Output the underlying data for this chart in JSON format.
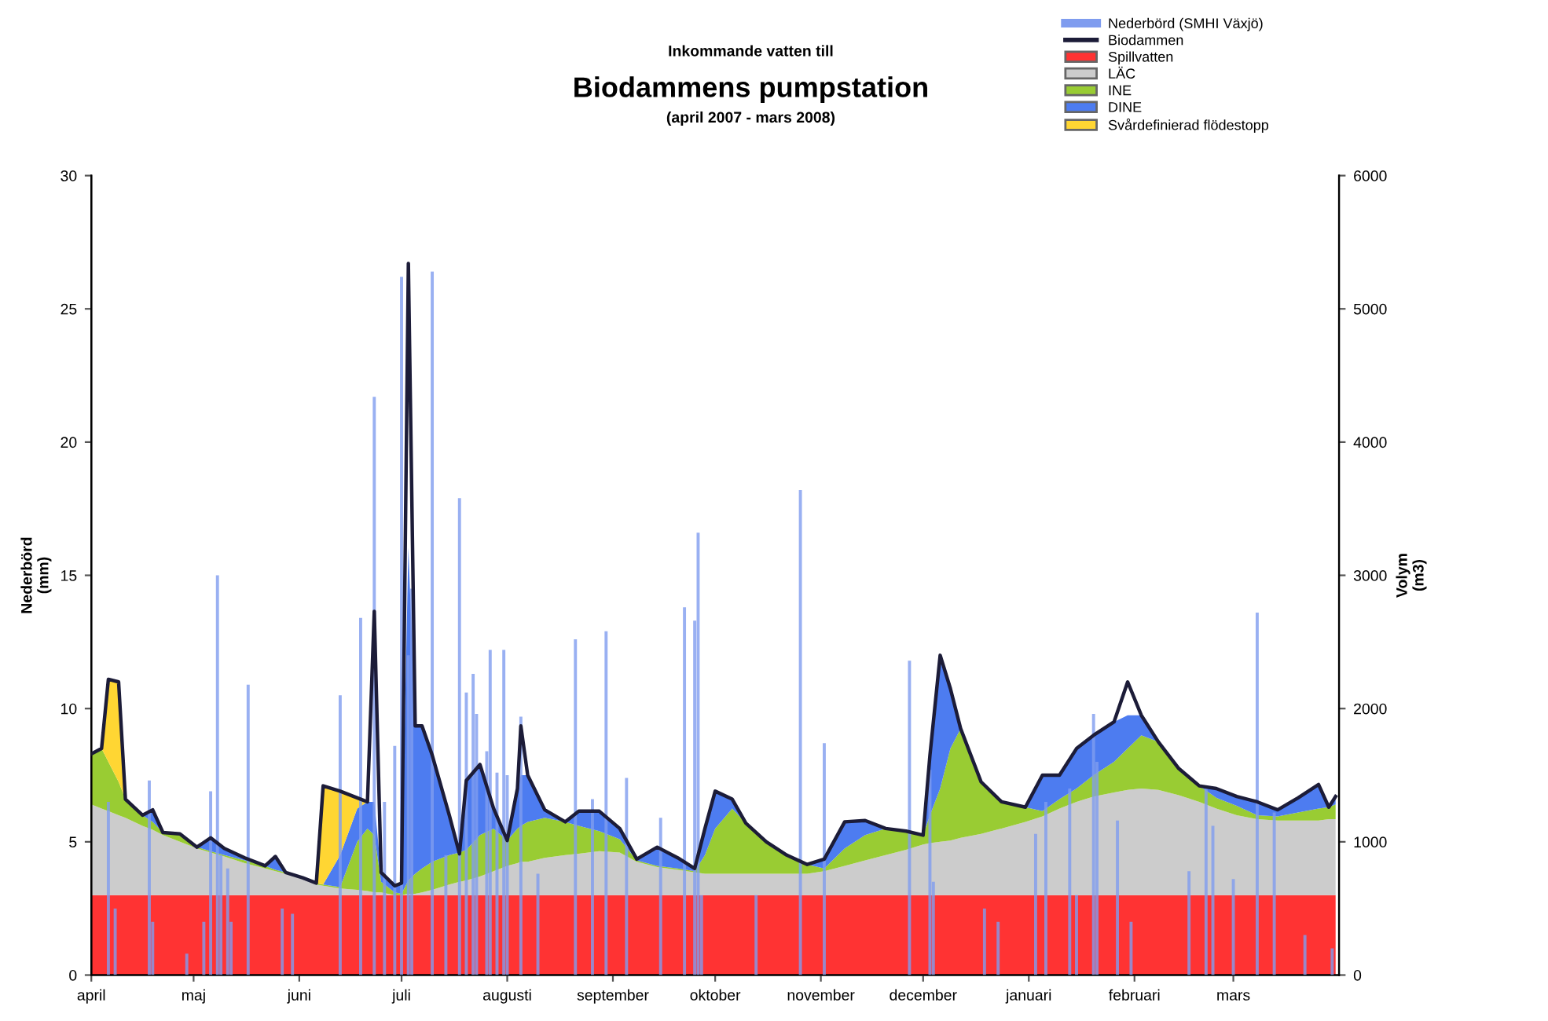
{
  "chart_data": {
    "type": "area",
    "stacked": true,
    "annotations": [
      "Inkommande vatten till"
    ],
    "title": "Biodammens pumpstation",
    "subtitle": "(april 2007 - mars 2008)",
    "ylabel": "Nederbörd\n(mm)",
    "y2label": "Volym\n(m3)",
    "x": [
      "2007-04-01",
      "2007-04-04",
      "2007-04-06",
      "2007-04-09",
      "2007-04-11",
      "2007-04-16",
      "2007-04-19",
      "2007-04-22",
      "2007-04-27",
      "2007-05-02",
      "2007-05-06",
      "2007-05-10",
      "2007-05-16",
      "2007-05-22",
      "2007-05-25",
      "2007-05-28",
      "2007-06-02",
      "2007-06-06",
      "2007-06-08",
      "2007-06-13",
      "2007-06-18",
      "2007-06-21",
      "2007-06-23",
      "2007-06-25",
      "2007-06-29",
      "2007-07-01",
      "2007-07-03",
      "2007-07-05",
      "2007-07-07",
      "2007-07-10",
      "2007-07-15",
      "2007-07-18",
      "2007-07-20",
      "2007-07-24",
      "2007-07-28",
      "2007-08-01",
      "2007-08-04",
      "2007-08-05",
      "2007-08-07",
      "2007-08-12",
      "2007-08-18",
      "2007-08-22",
      "2007-08-28",
      "2007-09-03",
      "2007-09-08",
      "2007-09-14",
      "2007-09-20",
      "2007-09-25",
      "2007-09-28",
      "2007-10-01",
      "2007-10-06",
      "2007-10-10",
      "2007-10-16",
      "2007-10-22",
      "2007-10-28",
      "2007-11-02",
      "2007-11-08",
      "2007-11-14",
      "2007-11-20",
      "2007-11-26",
      "2007-12-01",
      "2007-12-03",
      "2007-12-06",
      "2007-12-09",
      "2007-12-12",
      "2007-12-18",
      "2007-12-24",
      "2007-12-31",
      "2008-01-05",
      "2008-01-10",
      "2008-01-15",
      "2008-01-20",
      "2008-01-26",
      "2008-01-30",
      "2008-02-03",
      "2008-02-08",
      "2008-02-14",
      "2008-02-20",
      "2008-02-25",
      "2008-03-02",
      "2008-03-08",
      "2008-03-14",
      "2008-03-20",
      "2008-03-26",
      "2008-03-29",
      "2008-03-31"
    ],
    "series": [
      {
        "name": "Spillvatten",
        "axis": "y2",
        "color": "#ff3333",
        "values": [
          600,
          600,
          600,
          600,
          600,
          600,
          600,
          600,
          600,
          600,
          600,
          600,
          600,
          600,
          600,
          600,
          600,
          600,
          600,
          600,
          600,
          600,
          600,
          600,
          600,
          600,
          600,
          600,
          600,
          600,
          600,
          600,
          600,
          600,
          600,
          600,
          600,
          600,
          600,
          600,
          600,
          600,
          600,
          600,
          600,
          600,
          600,
          600,
          600,
          600,
          600,
          600,
          600,
          600,
          600,
          600,
          600,
          600,
          600,
          600,
          600,
          600,
          600,
          600,
          600,
          600,
          600,
          600,
          600,
          600,
          600,
          600,
          600,
          600,
          600,
          600,
          600,
          600,
          600,
          600,
          600,
          600,
          600,
          600,
          600,
          600
        ]
      },
      {
        "name": "LÄC",
        "axis": "y2",
        "color": "#cccccc",
        "values": [
          680,
          650,
          630,
          600,
          580,
          520,
          490,
          450,
          400,
          350,
          320,
          290,
          240,
          200,
          180,
          160,
          120,
          80,
          70,
          50,
          40,
          30,
          20,
          20,
          0,
          0,
          10,
          10,
          20,
          40,
          80,
          100,
          110,
          140,
          180,
          220,
          240,
          250,
          250,
          280,
          300,
          310,
          330,
          320,
          250,
          210,
          190,
          170,
          160,
          160,
          160,
          160,
          160,
          160,
          160,
          180,
          220,
          260,
          300,
          340,
          380,
          390,
          400,
          410,
          430,
          460,
          500,
          550,
          590,
          650,
          700,
          740,
          770,
          790,
          800,
          790,
          750,
          700,
          650,
          600,
          570,
          560,
          560,
          560,
          570,
          570
        ]
      },
      {
        "name": "INE",
        "axis": "y2",
        "color": "#99cc33",
        "values": [
          380,
          450,
          370,
          250,
          140,
          80,
          60,
          20,
          60,
          10,
          10,
          10,
          20,
          20,
          10,
          10,
          10,
          10,
          10,
          10,
          360,
          470,
          430,
          80,
          20,
          10,
          100,
          150,
          180,
          210,
          220,
          220,
          230,
          310,
          320,
          190,
          260,
          270,
          300,
          300,
          250,
          210,
          150,
          100,
          10,
          10,
          10,
          10,
          140,
          340,
          490,
          380,
          240,
          140,
          70,
          20,
          130,
          190,
          200,
          140,
          70,
          210,
          400,
          690,
          820,
          390,
          200,
          110,
          40,
          70,
          100,
          160,
          230,
          310,
          400,
          360,
          200,
          120,
          80,
          70,
          30,
          30,
          60,
          90,
          90,
          110
        ]
      },
      {
        "name": "DINE",
        "axis": "y2",
        "color": "#4d7cf0",
        "values": [
          0,
          0,
          0,
          0,
          0,
          0,
          90,
          0,
          0,
          0,
          100,
          50,
          20,
          0,
          100,
          0,
          0,
          0,
          0,
          240,
          250,
          200,
          250,
          70,
          50,
          80,
          2500,
          1110,
          1070,
          800,
          300,
          0,
          520,
          530,
          150,
          0,
          300,
          380,
          350,
          60,
          0,
          110,
          150,
          80,
          10,
          140,
          80,
          20,
          200,
          280,
          70,
          0,
          0,
          0,
          0,
          70,
          200,
          110,
          0,
          0,
          0,
          450,
          950,
          450,
          0,
          0,
          0,
          0,
          270,
          180,
          300,
          300,
          300,
          250,
          150,
          0,
          0,
          0,
          70,
          70,
          100,
          50,
          110,
          180,
          0,
          60
        ]
      },
      {
        "name": "Svårdefinierad flödestopp",
        "axis": "y2",
        "color": "#ffd633",
        "values": [
          0,
          0,
          620,
          750,
          0,
          0,
          0,
          0,
          0,
          0,
          0,
          0,
          0,
          0,
          0,
          0,
          0,
          0,
          740,
          480,
          80,
          0,
          0,
          0,
          0,
          0,
          0,
          0,
          0,
          0,
          0,
          0,
          0,
          0,
          0,
          0,
          0,
          0,
          0,
          0,
          0,
          0,
          0,
          0,
          0,
          0,
          0,
          0,
          0,
          0,
          0,
          0,
          0,
          0,
          0,
          0,
          0,
          0,
          0,
          0,
          0,
          0,
          0,
          0,
          0,
          0,
          0,
          0,
          0,
          0,
          0,
          0,
          0,
          0,
          0,
          0,
          0,
          0,
          0,
          0,
          0,
          0,
          0,
          0,
          0,
          0
        ]
      },
      {
        "name": "Nederbörd (SMHI Växjö)",
        "type": "bar",
        "axis": "y",
        "color": "#7f9cef",
        "x": [
          "2007-04-06",
          "2007-04-08",
          "2007-04-18",
          "2007-04-19",
          "2007-04-29",
          "2007-05-04",
          "2007-05-06",
          "2007-05-08",
          "2007-05-09",
          "2007-05-11",
          "2007-05-12",
          "2007-05-17",
          "2007-05-27",
          "2007-05-30",
          "2007-06-13",
          "2007-06-19",
          "2007-06-23",
          "2007-06-26",
          "2007-06-29",
          "2007-07-01",
          "2007-07-03",
          "2007-07-04",
          "2007-07-10",
          "2007-07-14",
          "2007-07-18",
          "2007-07-20",
          "2007-07-22",
          "2007-07-23",
          "2007-07-26",
          "2007-07-27",
          "2007-07-29",
          "2007-07-31",
          "2007-08-01",
          "2007-08-05",
          "2007-08-10",
          "2007-08-21",
          "2007-08-26",
          "2007-08-30",
          "2007-09-05",
          "2007-09-15",
          "2007-09-22",
          "2007-09-25",
          "2007-09-26",
          "2007-09-27",
          "2007-10-13",
          "2007-10-26",
          "2007-11-02",
          "2007-11-27",
          "2007-12-03",
          "2007-12-04",
          "2007-12-19",
          "2007-12-23",
          "2008-01-03",
          "2008-01-06",
          "2008-01-13",
          "2008-01-15",
          "2008-01-20",
          "2008-01-21",
          "2008-01-27",
          "2008-01-31",
          "2008-02-17",
          "2008-02-22",
          "2008-02-24",
          "2008-03-01",
          "2008-03-08",
          "2008-03-13",
          "2008-03-22",
          "2008-03-30"
        ],
        "values": [
          6.5,
          2.5,
          7.3,
          2.0,
          0.8,
          2.0,
          6.9,
          15.0,
          4.5,
          4.0,
          2.0,
          10.9,
          2.5,
          2.3,
          10.5,
          13.4,
          21.7,
          6.5,
          8.6,
          26.2,
          12.0,
          14.5,
          26.4,
          4.5,
          17.9,
          10.6,
          11.3,
          9.8,
          8.4,
          12.2,
          7.6,
          12.2,
          7.5,
          9.7,
          3.8,
          12.6,
          6.6,
          12.9,
          7.4,
          5.9,
          13.8,
          13.3,
          16.6,
          3.0,
          3.0,
          18.2,
          8.7,
          11.8,
          7.7,
          3.5,
          2.5,
          2.0,
          5.3,
          6.5,
          7.0,
          3.0,
          9.8,
          8.0,
          5.8,
          2.0,
          3.9,
          7.0,
          5.6,
          3.6,
          13.6,
          6.1,
          1.5,
          1.0
        ]
      },
      {
        "name": "Biodammen",
        "type": "line",
        "axis": "y2",
        "color": "#1c1c38",
        "values": [
          1660,
          1700,
          2220,
          2200,
          1320,
          1200,
          1240,
          1070,
          1060,
          960,
          1030,
          950,
          880,
          820,
          890,
          770,
          730,
          690,
          1420,
          1380,
          1330,
          1300,
          2730,
          770,
          670,
          690,
          5340,
          1870,
          1870,
          1650,
          1200,
          910,
          1460,
          1580,
          1250,
          1010,
          1400,
          1870,
          1500,
          1240,
          1150,
          1230,
          1230,
          1100,
          870,
          960,
          880,
          800,
          1100,
          1380,
          1320,
          1140,
          1000,
          900,
          830,
          870,
          1150,
          1160,
          1100,
          1080,
          1050,
          1650,
          2400,
          2150,
          1850,
          1450,
          1300,
          1260,
          1500,
          1500,
          1700,
          1800,
          1900,
          2200,
          1950,
          1750,
          1550,
          1420,
          1400,
          1340,
          1300,
          1240,
          1330,
          1430,
          1260,
          1340
        ]
      }
    ],
    "xlim": [
      "2007-04-01",
      "2008-04-01"
    ],
    "xticks": [
      {
        "value": "2007-04-01",
        "label": "april"
      },
      {
        "value": "2007-05-01",
        "label": "maj"
      },
      {
        "value": "2007-06-01",
        "label": "juni"
      },
      {
        "value": "2007-07-01",
        "label": "juli"
      },
      {
        "value": "2007-08-01",
        "label": "augusti"
      },
      {
        "value": "2007-09-01",
        "label": "september"
      },
      {
        "value": "2007-10-01",
        "label": "oktober"
      },
      {
        "value": "2007-11-01",
        "label": "november"
      },
      {
        "value": "2007-12-01",
        "label": "december"
      },
      {
        "value": "2008-01-01",
        "label": "januari"
      },
      {
        "value": "2008-02-01",
        "label": "februari"
      },
      {
        "value": "2008-03-01",
        "label": "mars"
      }
    ],
    "ylim": [
      0,
      30
    ],
    "yticks": [
      0,
      5,
      10,
      15,
      20,
      25,
      30
    ],
    "y2lim": [
      0,
      6000
    ],
    "y2ticks": [
      0,
      1000,
      2000,
      3000,
      4000,
      5000,
      6000
    ],
    "legend": "top right"
  }
}
